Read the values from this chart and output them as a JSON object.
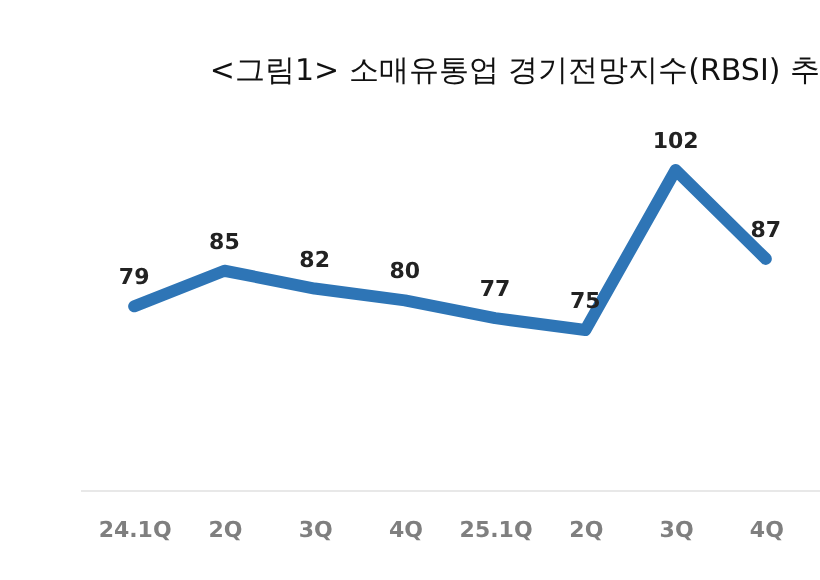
{
  "chart_data": {
    "type": "line",
    "title": "<그림1> 소매유통업 경기전망지수(RBSI) 추",
    "categories": [
      "24.1Q",
      "2Q",
      "3Q",
      "4Q",
      "25.1Q",
      "2Q",
      "3Q",
      "4Q"
    ],
    "series": [
      {
        "color": "#2e75b6",
        "values": [
          79,
          85,
          82,
          80,
          77,
          75,
          102,
          87
        ]
      }
    ],
    "tick_labels": "x",
    "data_labels": true,
    "grid": false,
    "marker": "none",
    "line_style": "solid"
  }
}
